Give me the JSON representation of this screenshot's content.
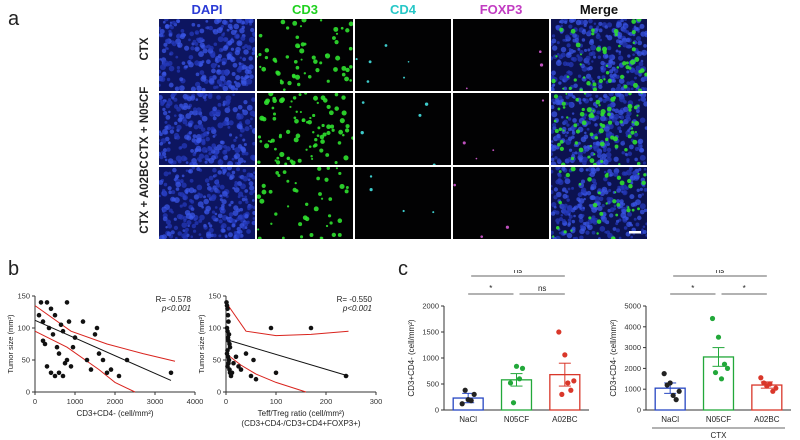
{
  "panel_a": {
    "letter": "a",
    "channels": [
      {
        "label": "DAPI",
        "color": "#2b3bd6"
      },
      {
        "label": "CD3",
        "color": "#1fd11f"
      },
      {
        "label": "CD4",
        "color": "#27c7c7"
      },
      {
        "label": "FOXP3",
        "color": "#c23cc2"
      },
      {
        "label": "Merge",
        "color": "#111111"
      }
    ],
    "rows": [
      "CTX",
      "CTX + N05CF",
      "CTX + A02BC"
    ]
  },
  "panel_b": {
    "letter": "b"
  },
  "panel_c": {
    "letter": "c"
  },
  "chart_data": [
    {
      "type": "scatter",
      "xlabel": "CD3+CD4- (cell/mm²)",
      "ylabel": "Tumor size (mm²)",
      "xlim": [
        0,
        4000
      ],
      "ylim": [
        0,
        150
      ],
      "x_ticks": [
        "0",
        "1000",
        "2000",
        "3000",
        "4000"
      ],
      "y_ticks": [
        "0",
        "50",
        "100",
        "150"
      ],
      "annotation": {
        "r": "R= -0.578",
        "p": "p<0.001"
      },
      "points": [
        [
          100,
          120
        ],
        [
          150,
          140
        ],
        [
          200,
          110
        ],
        [
          300,
          140
        ],
        [
          350,
          100
        ],
        [
          400,
          130
        ],
        [
          450,
          90
        ],
        [
          200,
          80
        ],
        [
          250,
          75
        ],
        [
          500,
          120
        ],
        [
          550,
          70
        ],
        [
          600,
          60
        ],
        [
          650,
          105
        ],
        [
          700,
          95
        ],
        [
          800,
          140
        ],
        [
          850,
          110
        ],
        [
          300,
          40
        ],
        [
          400,
          30
        ],
        [
          500,
          25
        ],
        [
          600,
          30
        ],
        [
          700,
          25
        ],
        [
          750,
          45
        ],
        [
          800,
          50
        ],
        [
          900,
          40
        ],
        [
          950,
          70
        ],
        [
          1000,
          85
        ],
        [
          1200,
          110
        ],
        [
          1300,
          50
        ],
        [
          1400,
          35
        ],
        [
          1500,
          90
        ],
        [
          1550,
          100
        ],
        [
          1600,
          60
        ],
        [
          1700,
          50
        ],
        [
          1800,
          30
        ],
        [
          1900,
          35
        ],
        [
          2100,
          25
        ],
        [
          2300,
          50
        ],
        [
          3400,
          30
        ]
      ],
      "fit": {
        "x": [
          0,
          3400
        ],
        "y": [
          112,
          18
        ]
      },
      "ci_upper": {
        "x": [
          0,
          900,
          1800,
          2700,
          3500
        ],
        "y": [
          135,
          95,
          75,
          60,
          48
        ]
      },
      "ci_lower": {
        "x": [
          0,
          800,
          1600,
          2000,
          2500
        ],
        "y": [
          95,
          70,
          35,
          15,
          0
        ]
      }
    },
    {
      "type": "scatter",
      "xlabel": "Teff/Treg ratio (cell/mm²)",
      "xlabel2": "(CD3+CD4-/CD3+CD4+FOXP3+)",
      "ylabel": "Tumor size (mm²)",
      "xlim": [
        0,
        300
      ],
      "ylim": [
        0,
        150
      ],
      "x_ticks": [
        "0",
        "100",
        "200",
        "300"
      ],
      "y_ticks": [
        "0",
        "50",
        "100",
        "150"
      ],
      "annotation": {
        "r": "R= -0.550",
        "p": "p<0.001"
      },
      "points": [
        [
          1,
          140
        ],
        [
          2,
          135
        ],
        [
          3,
          130
        ],
        [
          4,
          120
        ],
        [
          5,
          110
        ],
        [
          2,
          100
        ],
        [
          3,
          95
        ],
        [
          6,
          90
        ],
        [
          4,
          85
        ],
        [
          5,
          80
        ],
        [
          7,
          75
        ],
        [
          8,
          70
        ],
        [
          3,
          65
        ],
        [
          2,
          60
        ],
        [
          4,
          55
        ],
        [
          6,
          50
        ],
        [
          5,
          45
        ],
        [
          3,
          40
        ],
        [
          7,
          35
        ],
        [
          8,
          30
        ],
        [
          10,
          25
        ],
        [
          12,
          30
        ],
        [
          15,
          45
        ],
        [
          20,
          55
        ],
        [
          25,
          40
        ],
        [
          30,
          35
        ],
        [
          40,
          60
        ],
        [
          50,
          25
        ],
        [
          55,
          50
        ],
        [
          60,
          20
        ],
        [
          90,
          100
        ],
        [
          100,
          30
        ],
        [
          170,
          100
        ],
        [
          240,
          25
        ]
      ],
      "fit": {
        "x": [
          0,
          245
        ],
        "y": [
          82,
          25
        ]
      },
      "ci_upper": {
        "x": [
          0,
          40,
          100,
          170,
          245
        ],
        "y": [
          140,
          95,
          88,
          90,
          95
        ]
      },
      "ci_lower": {
        "x": [
          0,
          30,
          60,
          100,
          160
        ],
        "y": [
          60,
          42,
          28,
          15,
          0
        ]
      }
    },
    {
      "type": "bar",
      "categories": [
        "NaCl",
        "N05CF",
        "A02BC"
      ],
      "values": [
        230,
        580,
        680
      ],
      "sem": [
        90,
        120,
        220
      ],
      "colors": [
        "#2646c2",
        "#22a83a",
        "#d9372a"
      ],
      "ylabel": "CD3+CD4- (cell/mm²)",
      "ylim": [
        0,
        2000
      ],
      "y_ticks": [
        "0",
        "500",
        "1000",
        "1500",
        "2000"
      ],
      "points": [
        [
          120,
          200,
          300,
          380,
          180
        ],
        [
          520,
          840,
          800,
          140,
          600
        ],
        [
          1500,
          1060,
          380,
          300,
          520,
          560
        ]
      ],
      "comparisons": [
        {
          "pair": [
            0,
            1
          ],
          "label": "*"
        },
        {
          "pair": [
            1,
            2
          ],
          "label": "ns"
        },
        {
          "pair": [
            0,
            2
          ],
          "label": "ns"
        }
      ]
    },
    {
      "type": "bar",
      "categories": [
        "NaCl",
        "N05CF",
        "A02BC"
      ],
      "values": [
        1050,
        2550,
        1200
      ],
      "sem": [
        250,
        450,
        150
      ],
      "colors": [
        "#2646c2",
        "#22a83a",
        "#d9372a"
      ],
      "ylabel": "CD3+CD4- (cell/mm²)",
      "ylim": [
        0,
        5000
      ],
      "y_ticks": [
        "0",
        "1000",
        "2000",
        "3000",
        "4000",
        "5000"
      ],
      "group_label": "CTX",
      "points": [
        [
          1750,
          1300,
          500,
          1200,
          700,
          900
        ],
        [
          4400,
          3500,
          2200,
          1800,
          1500,
          2000
        ],
        [
          1550,
          1150,
          900,
          1300,
          1250,
          1050
        ]
      ],
      "comparisons": [
        {
          "pair": [
            0,
            1
          ],
          "label": "*"
        },
        {
          "pair": [
            1,
            2
          ],
          "label": "*"
        },
        {
          "pair": [
            0,
            2
          ],
          "label": "ns"
        }
      ]
    }
  ]
}
